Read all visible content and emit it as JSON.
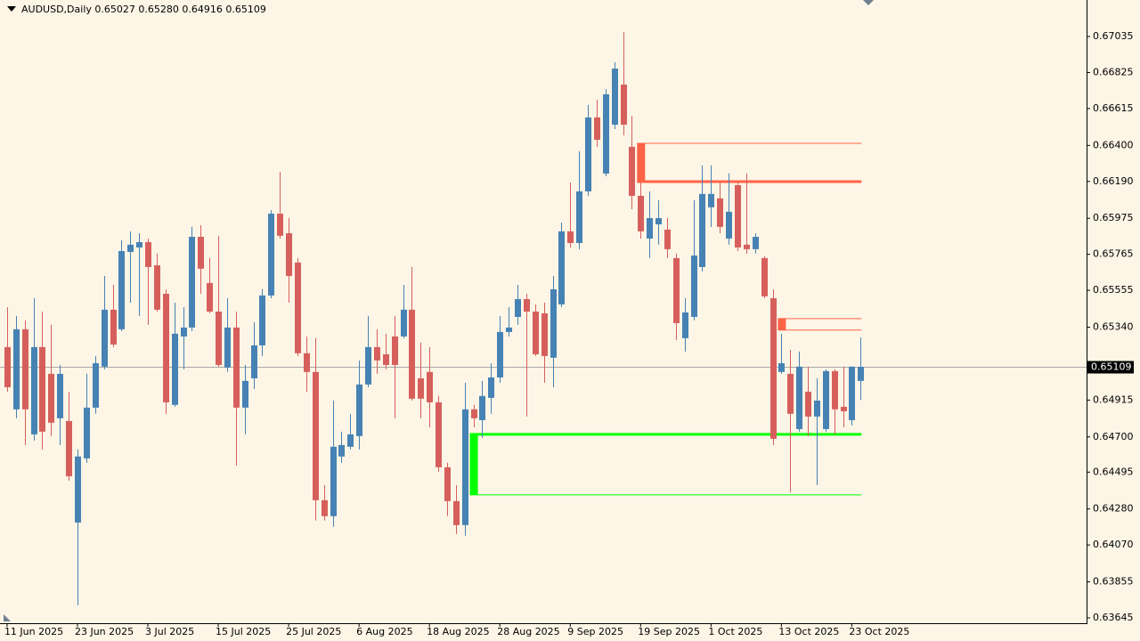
{
  "chart_data": {
    "type": "candlestick",
    "title": "AUDUSD,Daily  0.65027 0.65280 0.64916 0.65109",
    "bull_color": "#4682b4",
    "bear_color": "#d65f5c",
    "ylim": [
      0.63614,
      0.67248
    ],
    "yticks": [
      {
        "value": 0.67035,
        "label": "0.67035"
      },
      {
        "value": 0.66825,
        "label": "0.66825"
      },
      {
        "value": 0.66615,
        "label": "0.66615"
      },
      {
        "value": 0.664,
        "label": "0.66400"
      },
      {
        "value": 0.6619,
        "label": "0.66190"
      },
      {
        "value": 0.65975,
        "label": "0.65975"
      },
      {
        "value": 0.65765,
        "label": "0.65765"
      },
      {
        "value": 0.65555,
        "label": "0.65555"
      },
      {
        "value": 0.6534,
        "label": "0.65340"
      },
      {
        "value": 0.64915,
        "label": "0.64915"
      },
      {
        "value": 0.647,
        "label": "0.64700"
      },
      {
        "value": 0.64495,
        "label": "0.64495"
      },
      {
        "value": 0.6428,
        "label": "0.64280"
      },
      {
        "value": 0.6407,
        "label": "0.64070"
      },
      {
        "value": 0.63855,
        "label": "0.63855"
      },
      {
        "value": 0.63645,
        "label": "0.63645"
      }
    ],
    "current_price": {
      "value": 0.65109,
      "label": "0.65109",
      "color": "#a9a9a9"
    },
    "categories": [
      "11 Jun 2025",
      null,
      null,
      null,
      null,
      null,
      null,
      null,
      "23 Jun 2025",
      null,
      null,
      null,
      null,
      null,
      null,
      null,
      "3 Jul 2025",
      null,
      null,
      null,
      null,
      null,
      null,
      null,
      "15 Jul 2025",
      null,
      null,
      null,
      null,
      null,
      null,
      null,
      "25 Jul 2025",
      null,
      null,
      null,
      null,
      null,
      null,
      null,
      "6 Aug 2025",
      null,
      null,
      null,
      null,
      null,
      null,
      null,
      "18 Aug 2025",
      null,
      null,
      null,
      null,
      null,
      null,
      null,
      "28 Aug 2025",
      null,
      null,
      null,
      null,
      null,
      null,
      null,
      "9 Sep 2025",
      null,
      null,
      null,
      null,
      null,
      null,
      null,
      "19 Sep 2025",
      null,
      null,
      null,
      null,
      null,
      null,
      null,
      "1 Oct 2025",
      null,
      null,
      null,
      null,
      null,
      null,
      null,
      "13 Oct 2025",
      null,
      null,
      null,
      null,
      null,
      null,
      null,
      "23 Oct 2025",
      null
    ],
    "ohlc": [
      [
        0.65224,
        0.65457,
        0.64964,
        0.6499
      ],
      [
        0.64861,
        0.65406,
        0.64809,
        0.65328
      ],
      [
        0.65328,
        0.6538,
        0.64653,
        0.64861
      ],
      [
        0.64715,
        0.65509,
        0.64679,
        0.65224
      ],
      [
        0.65224,
        0.65431,
        0.64627,
        0.64731
      ],
      [
        0.65068,
        0.65354,
        0.64705,
        0.64783
      ],
      [
        0.64809,
        0.6512,
        0.64653,
        0.65068
      ],
      [
        0.64793,
        0.64964,
        0.64445,
        0.64471
      ],
      [
        0.64201,
        0.64627,
        0.63719,
        0.64586
      ],
      [
        0.64575,
        0.65068,
        0.64549,
        0.64871
      ],
      [
        0.64871,
        0.65172,
        0.64835,
        0.6513
      ],
      [
        0.6511,
        0.65639,
        0.65094,
        0.65442
      ],
      [
        0.65442,
        0.65587,
        0.65224,
        0.65239
      ],
      [
        0.65328,
        0.65847,
        0.65317,
        0.65784
      ],
      [
        0.65779,
        0.65899,
        0.65483,
        0.65821
      ],
      [
        0.65805,
        0.65888,
        0.65406,
        0.65836
      ],
      [
        0.65836,
        0.65857,
        0.65354,
        0.65691
      ],
      [
        0.65701,
        0.65769,
        0.65431,
        0.65442
      ],
      [
        0.65535,
        0.65561,
        0.64835,
        0.64902
      ],
      [
        0.64887,
        0.65483,
        0.64876,
        0.65302
      ],
      [
        0.65286,
        0.65457,
        0.65094,
        0.65338
      ],
      [
        0.65338,
        0.65925,
        0.65317,
        0.65867
      ],
      [
        0.65867,
        0.65935,
        0.65535,
        0.65681
      ],
      [
        0.65598,
        0.65743,
        0.65421,
        0.65431
      ],
      [
        0.65431,
        0.65873,
        0.6511,
        0.6512
      ],
      [
        0.65105,
        0.65509,
        0.65079,
        0.65338
      ],
      [
        0.65338,
        0.65431,
        0.64534,
        0.64871
      ],
      [
        0.64871,
        0.6512,
        0.64715,
        0.65027
      ],
      [
        0.65042,
        0.65369,
        0.6498,
        0.65234
      ],
      [
        0.65234,
        0.65561,
        0.65172,
        0.65525
      ],
      [
        0.65525,
        0.66023,
        0.65509,
        0.66002
      ],
      [
        0.66002,
        0.66246,
        0.65857,
        0.65873
      ],
      [
        0.65888,
        0.65976,
        0.65483,
        0.65639
      ],
      [
        0.65717,
        0.65743,
        0.65172,
        0.65188
      ],
      [
        0.65188,
        0.65286,
        0.64964,
        0.65079
      ],
      [
        0.65079,
        0.65276,
        0.64212,
        0.64331
      ],
      [
        0.64331,
        0.64419,
        0.64212,
        0.64238
      ],
      [
        0.64238,
        0.64912,
        0.64176,
        0.64643
      ],
      [
        0.64586,
        0.64731,
        0.64549,
        0.64653
      ],
      [
        0.64643,
        0.64835,
        0.64627,
        0.64715
      ],
      [
        0.64705,
        0.65146,
        0.64627,
        0.65006
      ],
      [
        0.65006,
        0.65406,
        0.6499,
        0.65224
      ],
      [
        0.65224,
        0.65328,
        0.65068,
        0.65146
      ],
      [
        0.65182,
        0.65302,
        0.65094,
        0.6512
      ],
      [
        0.65286,
        0.65406,
        0.64809,
        0.6512
      ],
      [
        0.65286,
        0.65587,
        0.65276,
        0.65442
      ],
      [
        0.65442,
        0.65691,
        0.64912,
        0.64923
      ],
      [
        0.65042,
        0.6525,
        0.64809,
        0.64923
      ],
      [
        0.65079,
        0.65224,
        0.64757,
        0.64902
      ],
      [
        0.64902,
        0.64939,
        0.64497,
        0.64523
      ],
      [
        0.64523,
        0.64549,
        0.64238,
        0.64326
      ],
      [
        0.64326,
        0.64419,
        0.64134,
        0.64186
      ],
      [
        0.64186,
        0.65016,
        0.64124,
        0.64861
      ],
      [
        0.64861,
        0.64887,
        0.64757,
        0.64809
      ],
      [
        0.64798,
        0.65027,
        0.64695,
        0.64939
      ],
      [
        0.64928,
        0.6513,
        0.64835,
        0.65047
      ],
      [
        0.65047,
        0.65406,
        0.65016,
        0.65312
      ],
      [
        0.65312,
        0.65457,
        0.65286,
        0.65338
      ],
      [
        0.654,
        0.65587,
        0.65354,
        0.65504
      ],
      [
        0.65504,
        0.65535,
        0.64819,
        0.65431
      ],
      [
        0.65431,
        0.65473,
        0.65172,
        0.65182
      ],
      [
        0.65421,
        0.65483,
        0.65016,
        0.65172
      ],
      [
        0.65162,
        0.65639,
        0.6499,
        0.65561
      ],
      [
        0.65473,
        0.6595,
        0.65457,
        0.65899
      ],
      [
        0.65899,
        0.66184,
        0.65805,
        0.65831
      ],
      [
        0.65831,
        0.66366,
        0.65795,
        0.66132
      ],
      [
        0.66132,
        0.66636,
        0.66106,
        0.66563
      ],
      [
        0.66563,
        0.66667,
        0.66392,
        0.66433
      ],
      [
        0.66236,
        0.66729,
        0.6622,
        0.66698
      ],
      [
        0.66521,
        0.66885,
        0.66495,
        0.66848
      ],
      [
        0.66755,
        0.67061,
        0.66459,
        0.66521
      ],
      [
        0.66392,
        0.66573,
        0.66028,
        0.66106
      ],
      [
        0.66106,
        0.66184,
        0.65857,
        0.65899
      ],
      [
        0.65857,
        0.66132,
        0.65743,
        0.65976
      ],
      [
        0.6594,
        0.6608,
        0.65821,
        0.65976
      ],
      [
        0.65909,
        0.65976,
        0.65743,
        0.65795
      ],
      [
        0.65743,
        0.65769,
        0.65265,
        0.65364
      ],
      [
        0.65276,
        0.65509,
        0.65198,
        0.65426
      ],
      [
        0.654,
        0.6608,
        0.6538,
        0.65758
      ],
      [
        0.65691,
        0.66283,
        0.65665,
        0.66117
      ],
      [
        0.66039,
        0.66283,
        0.65925,
        0.66117
      ],
      [
        0.66091,
        0.66184,
        0.65888,
        0.65925
      ],
      [
        0.65857,
        0.66236,
        0.65821,
        0.66013
      ],
      [
        0.66168,
        0.66184,
        0.65784,
        0.65805
      ],
      [
        0.65821,
        0.66236,
        0.65769,
        0.65795
      ],
      [
        0.65795,
        0.65888,
        0.65769,
        0.65867
      ],
      [
        0.65743,
        0.65753,
        0.65509,
        0.6552
      ],
      [
        0.65509,
        0.65561,
        0.64653,
        0.64689
      ],
      [
        0.65079,
        0.65302,
        0.65068,
        0.6513
      ],
      [
        0.65068,
        0.65208,
        0.64378,
        0.64835
      ],
      [
        0.64746,
        0.65198,
        0.64731,
        0.6511
      ],
      [
        0.64964,
        0.6511,
        0.64705,
        0.64819
      ],
      [
        0.64819,
        0.65042,
        0.64419,
        0.64912
      ],
      [
        0.64746,
        0.65094,
        0.64731,
        0.65084
      ],
      [
        0.65084,
        0.65094,
        0.64715,
        0.64861
      ],
      [
        0.64876,
        0.6511,
        0.64757,
        0.6485
      ],
      [
        0.64798,
        0.6511,
        0.64767,
        0.6511
      ],
      [
        0.65027,
        0.6528,
        0.64916,
        0.65109
      ]
    ],
    "zones": [
      {
        "top": 0.66412,
        "bottom": 0.66189,
        "from": 72,
        "color": "#ff6347",
        "thick": "bottom"
      },
      {
        "top": 0.6539,
        "bottom": 0.65323,
        "from": 88,
        "color": "#ff6347",
        "thick": "none"
      },
      {
        "top": 0.64715,
        "bottom": 0.64362,
        "from": 53,
        "color": "#00ff00",
        "thick": "top"
      }
    ]
  }
}
